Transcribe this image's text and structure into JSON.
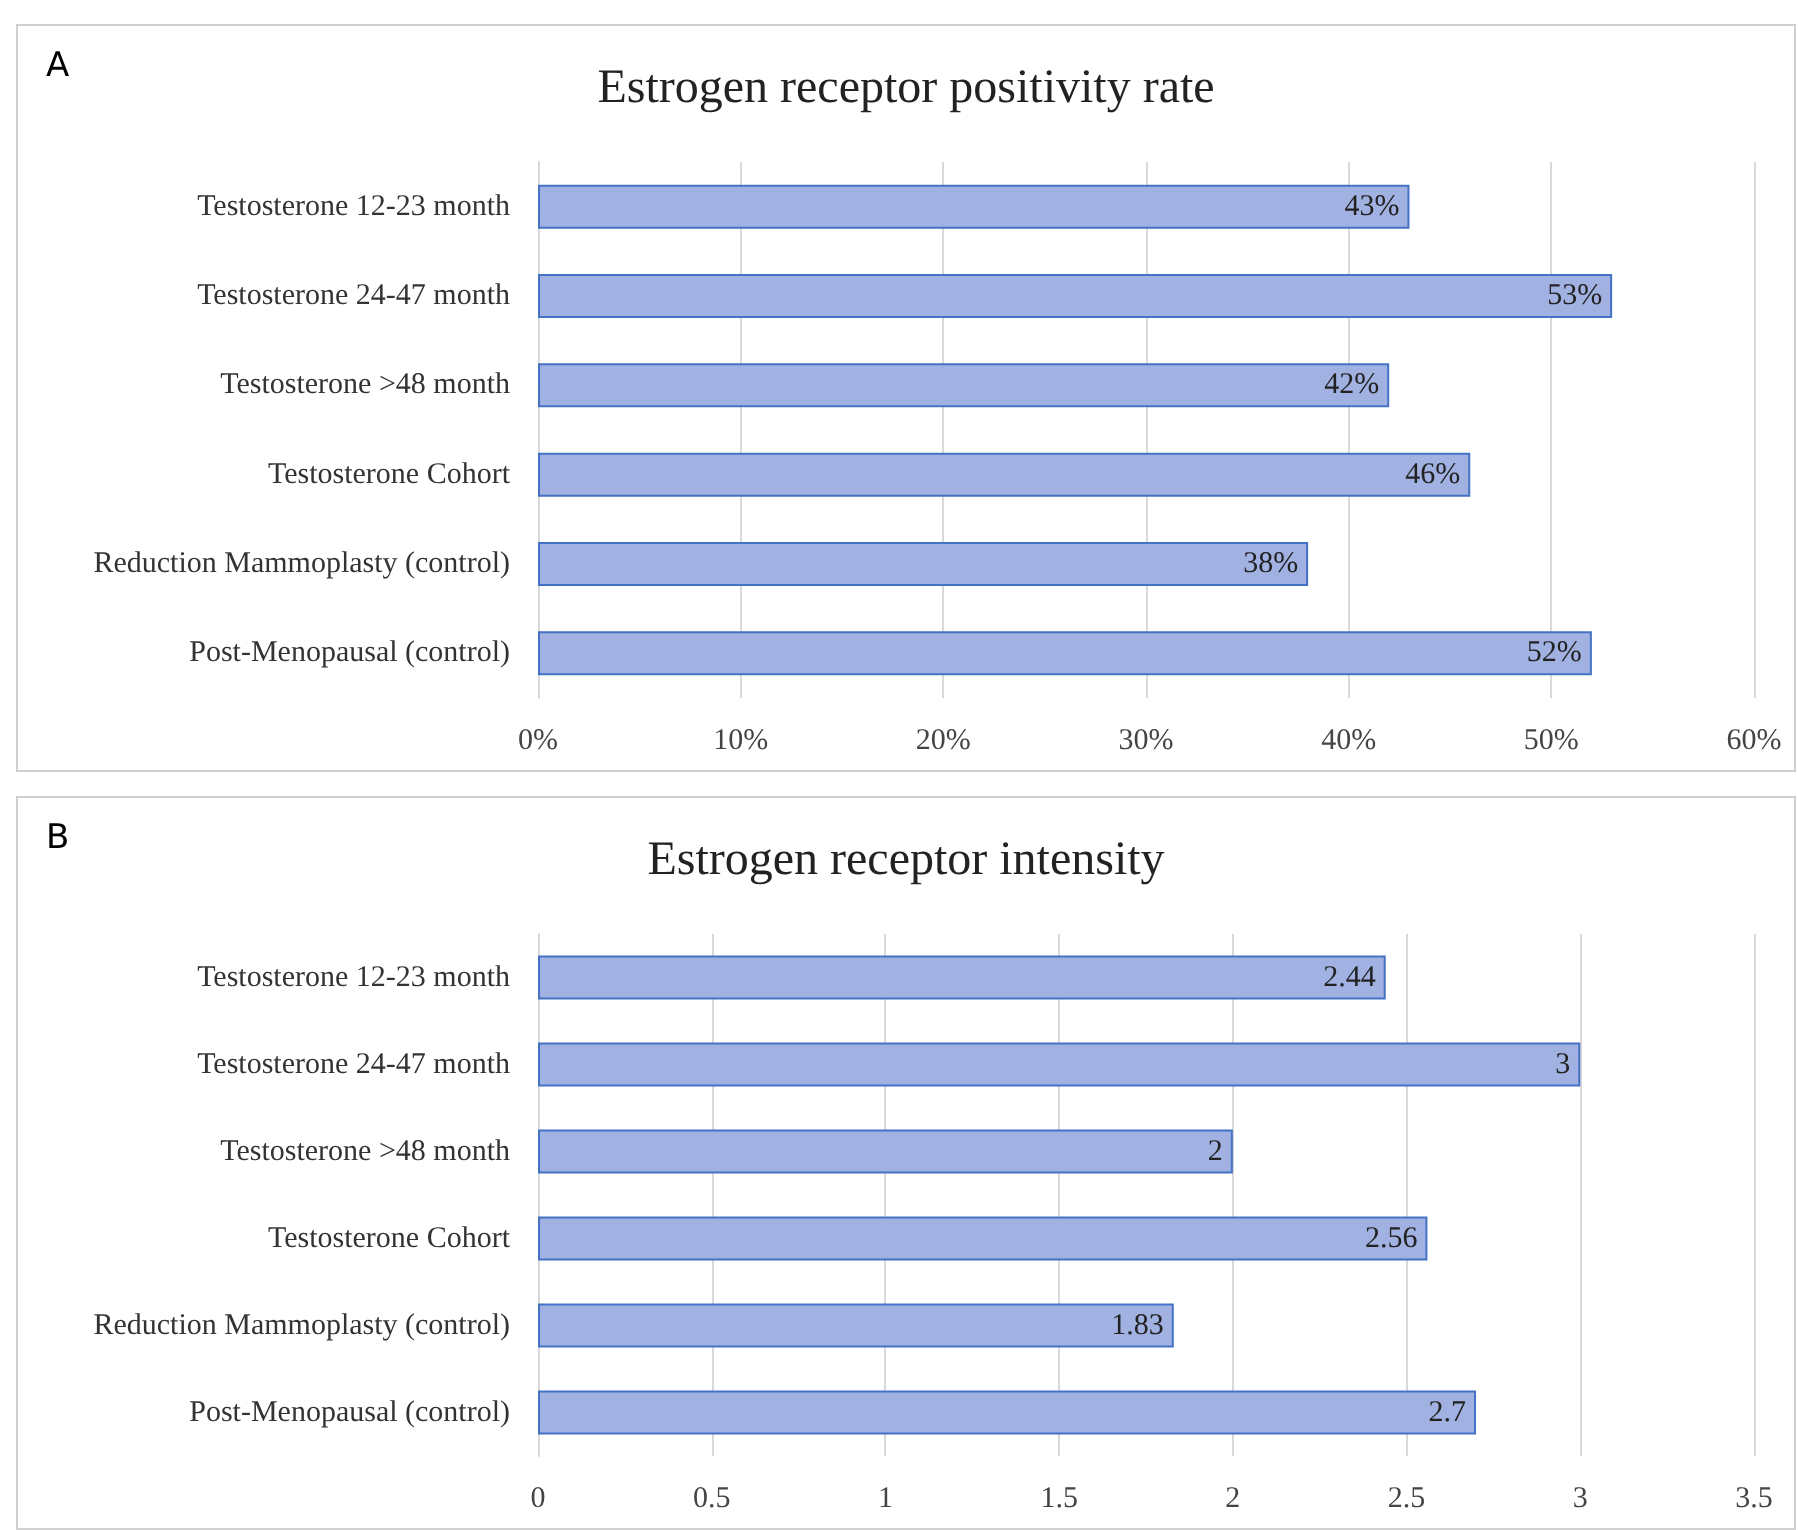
{
  "chart_data": [
    {
      "type": "bar",
      "orientation": "horizontal",
      "title": "Estrogen receptor positivity rate",
      "annotations": [
        "A"
      ],
      "categories": [
        "Testosterone 12-23 month",
        "Testosterone 24-47 month",
        "Testosterone >48 month",
        "Testosterone Cohort",
        "Reduction Mammoplasty (control)",
        "Post-Menopausal (control)"
      ],
      "series": [
        {
          "color": "#a0b1e2",
          "values": [
            43,
            53,
            42,
            46,
            38,
            52
          ],
          "value_labels": [
            "43%",
            "53%",
            "42%",
            "46%",
            "38%",
            "52%"
          ]
        }
      ],
      "xlim": [
        0,
        60
      ],
      "xticks": [
        {
          "value": 0,
          "label": "0%"
        },
        {
          "value": 10,
          "label": "10%"
        },
        {
          "value": 20,
          "label": "20%"
        },
        {
          "value": 30,
          "label": "30%"
        },
        {
          "value": 40,
          "label": "40%"
        },
        {
          "value": 50,
          "label": "50%"
        },
        {
          "value": 60,
          "label": "60%"
        }
      ],
      "grid": "x"
    },
    {
      "type": "bar",
      "orientation": "horizontal",
      "title": "Estrogen receptor intensity",
      "annotations": [
        "B"
      ],
      "categories": [
        "Testosterone 12-23 month",
        "Testosterone 24-47 month",
        "Testosterone >48 month",
        "Testosterone Cohort",
        "Reduction Mammoplasty (control)",
        "Post-Menopausal (control)"
      ],
      "series": [
        {
          "color": "#a0b1e2",
          "values": [
            2.44,
            3,
            2,
            2.56,
            1.83,
            2.7
          ]
        }
      ],
      "data_labels": true,
      "xlim": [
        0,
        3.5
      ],
      "xticks": [
        0,
        0.5,
        1,
        1.5,
        2,
        2.5,
        3,
        3.5
      ],
      "grid": "x"
    }
  ]
}
